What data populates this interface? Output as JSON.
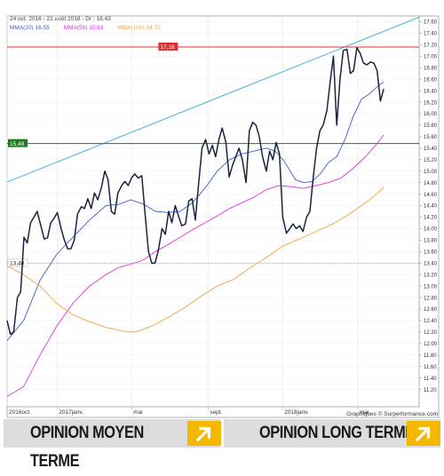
{
  "chart_data": {
    "type": "line",
    "header": "24 oct. 2016 - 21 août 2018 - Dr : 16.43",
    "legend": [
      {
        "name": "MMA(20)",
        "value": "16.55",
        "color": "#3a5fcd"
      },
      {
        "name": "MMA(50)",
        "value": "15.63",
        "color": "#e032e0"
      },
      {
        "name": "MMA(100)",
        "value": "14.72",
        "color": "#f5a040"
      }
    ],
    "source": "Graphiques © Surperformance.com",
    "ylim": [
      10.9,
      17.7
    ],
    "y_ticks": [
      "11.20",
      "11.40",
      "11.60",
      "11.80",
      "12.00",
      "12.20",
      "12.40",
      "12.60",
      "12.80",
      "13.00",
      "13.20",
      "13.40",
      "13.60",
      "13.80",
      "14.00",
      "14.20",
      "14.40",
      "14.60",
      "14.80",
      "15.00",
      "15.20",
      "15.40",
      "15.60",
      "15.80",
      "16.00",
      "16.20",
      "16.40",
      "16.60",
      "16.80",
      "17.00",
      "17.20",
      "17.40",
      "17.60"
    ],
    "x_ticks": [
      {
        "label": "2016oct.",
        "t": 0.0
      },
      {
        "label": "2017janv.",
        "t": 0.1213
      },
      {
        "label": "mai",
        "t": 0.302
      },
      {
        "label": "sept.",
        "t": 0.4876
      },
      {
        "label": "2018janv.",
        "t": 0.6683
      },
      {
        "label": "mai",
        "t": 0.8515
      }
    ],
    "levels": [
      {
        "label": "17,16",
        "value": 17.16,
        "color": "#e03030",
        "style": "solid",
        "label_bg": "#e03030",
        "label_color": "#ffffff",
        "label_t": 0.365
      },
      {
        "label": "15,48",
        "value": 15.48,
        "color": "#1e7a1e",
        "style": "solid",
        "label_bg": "#1e7a1e",
        "label_color": "#ffffff",
        "label_t": 0.0
      },
      {
        "label": "13,40",
        "value": 13.4,
        "color": "#888888",
        "style": "dotted",
        "label_bg": "#ffffff",
        "label_color": "#222222",
        "label_t": 0.0
      }
    ],
    "trendline": {
      "color": "#2ea8e8",
      "points": [
        [
          0.0,
          14.81
        ],
        [
          1.0,
          17.68
        ]
      ]
    },
    "series": [
      {
        "name": "Cours",
        "color": "#1a2440",
        "width": 1.5,
        "points": [
          [
            0.0,
            12.4
          ],
          [
            0.008,
            12.16
          ],
          [
            0.016,
            12.2
          ],
          [
            0.025,
            12.8
          ],
          [
            0.033,
            12.9
          ],
          [
            0.041,
            13.85
          ],
          [
            0.049,
            13.75
          ],
          [
            0.057,
            14.1
          ],
          [
            0.065,
            14.2
          ],
          [
            0.073,
            14.3
          ],
          [
            0.082,
            14.05
          ],
          [
            0.09,
            13.82
          ],
          [
            0.098,
            13.84
          ],
          [
            0.106,
            14.1
          ],
          [
            0.114,
            14.18
          ],
          [
            0.122,
            14.28
          ],
          [
            0.131,
            14.0
          ],
          [
            0.139,
            13.8
          ],
          [
            0.147,
            13.65
          ],
          [
            0.155,
            13.65
          ],
          [
            0.163,
            13.8
          ],
          [
            0.171,
            14.25
          ],
          [
            0.18,
            14.38
          ],
          [
            0.188,
            14.35
          ],
          [
            0.196,
            14.52
          ],
          [
            0.204,
            14.35
          ],
          [
            0.212,
            14.62
          ],
          [
            0.22,
            14.5
          ],
          [
            0.229,
            14.72
          ],
          [
            0.237,
            15.0
          ],
          [
            0.245,
            14.85
          ],
          [
            0.253,
            14.3
          ],
          [
            0.261,
            14.25
          ],
          [
            0.269,
            14.62
          ],
          [
            0.278,
            14.75
          ],
          [
            0.286,
            14.82
          ],
          [
            0.294,
            14.75
          ],
          [
            0.302,
            14.88
          ],
          [
            0.31,
            14.95
          ],
          [
            0.318,
            14.88
          ],
          [
            0.327,
            14.92
          ],
          [
            0.335,
            14.25
          ],
          [
            0.343,
            13.6
          ],
          [
            0.351,
            13.4
          ],
          [
            0.359,
            13.4
          ],
          [
            0.367,
            13.62
          ],
          [
            0.376,
            14.0
          ],
          [
            0.384,
            13.9
          ],
          [
            0.392,
            14.3
          ],
          [
            0.4,
            14.1
          ],
          [
            0.408,
            14.4
          ],
          [
            0.416,
            14.22
          ],
          [
            0.424,
            14.05
          ],
          [
            0.433,
            14.08
          ],
          [
            0.441,
            14.48
          ],
          [
            0.449,
            14.52
          ],
          [
            0.457,
            14.15
          ],
          [
            0.465,
            14.8
          ],
          [
            0.473,
            15.4
          ],
          [
            0.482,
            15.55
          ],
          [
            0.49,
            15.3
          ],
          [
            0.498,
            15.45
          ],
          [
            0.506,
            15.25
          ],
          [
            0.514,
            15.55
          ],
          [
            0.522,
            15.75
          ],
          [
            0.531,
            15.5
          ],
          [
            0.539,
            14.9
          ],
          [
            0.547,
            15.1
          ],
          [
            0.555,
            15.25
          ],
          [
            0.563,
            15.4
          ],
          [
            0.571,
            15.2
          ],
          [
            0.58,
            14.8
          ],
          [
            0.588,
            15.7
          ],
          [
            0.596,
            15.85
          ],
          [
            0.604,
            15.8
          ],
          [
            0.612,
            15.6
          ],
          [
            0.62,
            15.25
          ],
          [
            0.629,
            15.0
          ],
          [
            0.637,
            15.35
          ],
          [
            0.645,
            15.2
          ],
          [
            0.653,
            15.5
          ],
          [
            0.661,
            15.3
          ],
          [
            0.669,
            14.2
          ],
          [
            0.678,
            13.92
          ],
          [
            0.686,
            14.0
          ],
          [
            0.694,
            14.08
          ],
          [
            0.702,
            14.0
          ],
          [
            0.71,
            14.05
          ],
          [
            0.718,
            13.95
          ],
          [
            0.727,
            14.2
          ],
          [
            0.735,
            14.3
          ],
          [
            0.743,
            14.9
          ],
          [
            0.751,
            15.4
          ],
          [
            0.759,
            15.7
          ],
          [
            0.767,
            15.8
          ],
          [
            0.776,
            16.05
          ],
          [
            0.784,
            16.55
          ],
          [
            0.792,
            17.0
          ],
          [
            0.8,
            15.8
          ],
          [
            0.808,
            16.6
          ],
          [
            0.816,
            17.1
          ],
          [
            0.825,
            17.12
          ],
          [
            0.833,
            16.7
          ],
          [
            0.841,
            16.75
          ],
          [
            0.849,
            17.15
          ],
          [
            0.857,
            17.05
          ],
          [
            0.865,
            16.88
          ],
          [
            0.873,
            16.85
          ],
          [
            0.882,
            16.9
          ],
          [
            0.89,
            16.88
          ],
          [
            0.898,
            16.75
          ],
          [
            0.906,
            16.22
          ],
          [
            0.914,
            16.43
          ]
        ]
      },
      {
        "name": "MMA(20)",
        "color": "#3a5fcd",
        "width": 0.9,
        "points": [
          [
            0.0,
            12.05
          ],
          [
            0.04,
            12.4
          ],
          [
            0.08,
            13.1
          ],
          [
            0.12,
            13.55
          ],
          [
            0.16,
            13.85
          ],
          [
            0.2,
            14.15
          ],
          [
            0.24,
            14.4
          ],
          [
            0.27,
            14.42
          ],
          [
            0.3,
            14.5
          ],
          [
            0.33,
            14.43
          ],
          [
            0.36,
            14.3
          ],
          [
            0.39,
            14.28
          ],
          [
            0.42,
            14.3
          ],
          [
            0.45,
            14.45
          ],
          [
            0.48,
            14.7
          ],
          [
            0.51,
            15.0
          ],
          [
            0.54,
            15.2
          ],
          [
            0.57,
            15.3
          ],
          [
            0.6,
            15.35
          ],
          [
            0.63,
            15.4
          ],
          [
            0.65,
            15.35
          ],
          [
            0.67,
            15.2
          ],
          [
            0.7,
            14.85
          ],
          [
            0.72,
            14.8
          ],
          [
            0.74,
            14.82
          ],
          [
            0.76,
            14.95
          ],
          [
            0.78,
            15.15
          ],
          [
            0.8,
            15.25
          ],
          [
            0.82,
            15.55
          ],
          [
            0.84,
            15.95
          ],
          [
            0.86,
            16.25
          ],
          [
            0.88,
            16.35
          ],
          [
            0.9,
            16.48
          ],
          [
            0.914,
            16.55
          ]
        ]
      },
      {
        "name": "MMA(50)",
        "color": "#e032e0",
        "width": 0.9,
        "points": [
          [
            0.0,
            11.08
          ],
          [
            0.04,
            11.25
          ],
          [
            0.08,
            11.8
          ],
          [
            0.12,
            12.3
          ],
          [
            0.16,
            12.7
          ],
          [
            0.2,
            13.0
          ],
          [
            0.24,
            13.2
          ],
          [
            0.27,
            13.32
          ],
          [
            0.3,
            13.38
          ],
          [
            0.33,
            13.45
          ],
          [
            0.36,
            13.6
          ],
          [
            0.39,
            13.72
          ],
          [
            0.42,
            13.85
          ],
          [
            0.45,
            13.98
          ],
          [
            0.48,
            14.1
          ],
          [
            0.51,
            14.22
          ],
          [
            0.54,
            14.35
          ],
          [
            0.57,
            14.45
          ],
          [
            0.6,
            14.55
          ],
          [
            0.63,
            14.68
          ],
          [
            0.66,
            14.75
          ],
          [
            0.69,
            14.73
          ],
          [
            0.72,
            14.7
          ],
          [
            0.75,
            14.75
          ],
          [
            0.78,
            14.8
          ],
          [
            0.81,
            14.88
          ],
          [
            0.84,
            15.05
          ],
          [
            0.87,
            15.25
          ],
          [
            0.9,
            15.5
          ],
          [
            0.914,
            15.63
          ]
        ]
      },
      {
        "name": "MMA(100)",
        "color": "#f5a040",
        "width": 0.9,
        "points": [
          [
            0.0,
            13.35
          ],
          [
            0.04,
            13.2
          ],
          [
            0.08,
            13.0
          ],
          [
            0.12,
            12.7
          ],
          [
            0.16,
            12.5
          ],
          [
            0.2,
            12.38
          ],
          [
            0.24,
            12.28
          ],
          [
            0.28,
            12.22
          ],
          [
            0.3,
            12.2
          ],
          [
            0.32,
            12.22
          ],
          [
            0.35,
            12.3
          ],
          [
            0.39,
            12.45
          ],
          [
            0.43,
            12.62
          ],
          [
            0.47,
            12.82
          ],
          [
            0.51,
            13.0
          ],
          [
            0.55,
            13.12
          ],
          [
            0.59,
            13.32
          ],
          [
            0.63,
            13.5
          ],
          [
            0.67,
            13.7
          ],
          [
            0.71,
            13.82
          ],
          [
            0.75,
            13.95
          ],
          [
            0.79,
            14.08
          ],
          [
            0.83,
            14.25
          ],
          [
            0.87,
            14.45
          ],
          [
            0.9,
            14.62
          ],
          [
            0.914,
            14.72
          ]
        ]
      }
    ]
  },
  "opinions": {
    "moyen_terme_label": "OPINION MOYEN TERME",
    "long_terme_label": "OPINION LONG TERME",
    "moyen_terme_direction": "up",
    "long_terme_direction": "up"
  }
}
